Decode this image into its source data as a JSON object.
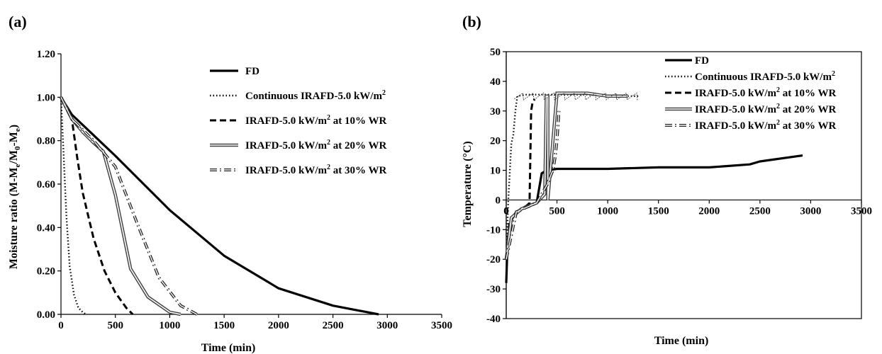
{
  "chart_data": [
    {
      "panel_label": "(a)",
      "type": "line",
      "title": "",
      "xlabel": "Time (min)",
      "ylabel": "Moisture ratio (M-Me/M0-Me)",
      "xlim": [
        0,
        3500
      ],
      "ylim": [
        0,
        1.2
      ],
      "x_ticks": [
        "0",
        "500",
        "1000",
        "1500",
        "2000",
        "2500",
        "3000",
        "3500"
      ],
      "y_ticks": [
        "0.00",
        "0.20",
        "0.40",
        "0.60",
        "0.80",
        "1.00",
        "1.20"
      ],
      "grid": false,
      "legend_position": "right",
      "series": [
        {
          "name": "FD",
          "style": "solid-thick",
          "x": [
            0,
            100,
            500,
            1000,
            1500,
            2000,
            2500,
            2920
          ],
          "y": [
            1.0,
            0.92,
            0.73,
            0.48,
            0.27,
            0.12,
            0.04,
            0.0
          ]
        },
        {
          "name": "Continuous IRAFD-5.0 kW/m²",
          "style": "dotted",
          "x": [
            0,
            20,
            50,
            80,
            120,
            160,
            200,
            230
          ],
          "y": [
            1.0,
            0.78,
            0.45,
            0.22,
            0.09,
            0.03,
            0.01,
            0.0
          ]
        },
        {
          "name": "IRAFD-5.0 kW/m² at 10% WR",
          "style": "dashed",
          "x": [
            0,
            100,
            150,
            200,
            300,
            400,
            500,
            600,
            660
          ],
          "y": [
            1.0,
            0.9,
            0.72,
            0.56,
            0.35,
            0.2,
            0.1,
            0.03,
            0.0
          ]
        },
        {
          "name": "IRAFD-5.0 kW/m² at 20% WR",
          "style": "double",
          "x": [
            0,
            100,
            200,
            300,
            390,
            500,
            640,
            800,
            1000,
            1100
          ],
          "y": [
            1.0,
            0.9,
            0.84,
            0.79,
            0.75,
            0.55,
            0.21,
            0.08,
            0.01,
            0.0
          ]
        },
        {
          "name": "IRAFD-5.0 kW/m² at 30% WR",
          "style": "dash-dot-double",
          "x": [
            0,
            100,
            300,
            500,
            700,
            900,
            1100,
            1250
          ],
          "y": [
            1.0,
            0.9,
            0.8,
            0.68,
            0.42,
            0.17,
            0.04,
            0.0
          ]
        }
      ]
    },
    {
      "panel_label": "(b)",
      "type": "line",
      "title": "",
      "xlabel": "Time (min)",
      "ylabel": "Temperature (°C)",
      "xlim": [
        0,
        3500
      ],
      "ylim": [
        -40,
        50
      ],
      "x_ticks": [
        "0",
        "500",
        "1000",
        "1500",
        "2000",
        "2500",
        "3000",
        "3500"
      ],
      "y_ticks": [
        "-40",
        "-30",
        "-20",
        "-10",
        "0",
        "10",
        "20",
        "30",
        "40",
        "50"
      ],
      "grid": false,
      "legend_position": "top-right",
      "series": [
        {
          "name": "FD",
          "style": "solid-thick",
          "x": [
            0,
            10,
            30,
            60,
            100,
            150,
            200,
            300,
            350,
            400,
            500,
            1000,
            1500,
            2000,
            2400,
            2500,
            2920
          ],
          "y": [
            -28,
            -18,
            -10,
            -6,
            -4,
            -3,
            -2,
            -1,
            9,
            10,
            10.5,
            10.5,
            11,
            11,
            12,
            13,
            15
          ]
        },
        {
          "name": "Continuous IRAFD-5.0 kW/m²",
          "style": "dotted",
          "x": [
            0,
            20,
            50,
            70,
            90,
            110,
            200,
            500,
            800,
            1000,
            1300
          ],
          "y": [
            -20,
            0,
            19,
            22,
            30,
            35,
            35.5,
            35.5,
            35.5,
            35,
            35
          ]
        },
        {
          "name": "IRAFD-5.0 kW/m² at 10% WR",
          "style": "dashed",
          "x": [
            0,
            30,
            100,
            200,
            230,
            245,
            260,
            280
          ],
          "y": [
            -20,
            -8,
            -4,
            -2,
            -1,
            30,
            33,
            34
          ]
        },
        {
          "name": "IRAFD-5.0 kW/m² at 20% WR",
          "style": "double",
          "x": [
            0,
            50,
            150,
            300,
            380,
            395,
            410,
            410,
            500,
            800,
            1000,
            1200
          ],
          "y": [
            -20,
            -6,
            -3,
            -1,
            2,
            35,
            35,
            0,
            36,
            36,
            35,
            35
          ]
        },
        {
          "name": "IRAFD-5.0 kW/m² at 30% WR",
          "style": "dash-dot-double",
          "x": [
            0,
            100,
            300,
            400,
            460,
            480,
            500,
            520
          ],
          "y": [
            -20,
            -4,
            -1,
            5,
            10,
            14,
            20,
            30
          ]
        }
      ]
    }
  ]
}
